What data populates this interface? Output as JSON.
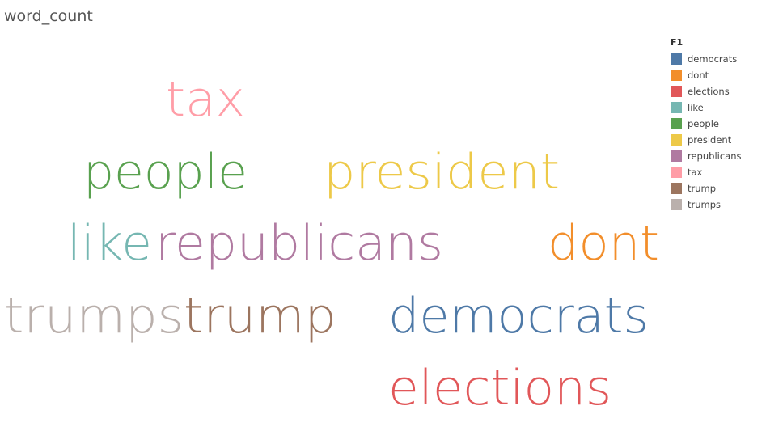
{
  "sheet": {
    "title": "word_count"
  },
  "legend": {
    "title": "F1"
  },
  "chart_data": {
    "type": "word-cloud",
    "field": "F1",
    "words": [
      {
        "text": "democrats",
        "color": "#4e79a7"
      },
      {
        "text": "dont",
        "color": "#f28e2b"
      },
      {
        "text": "elections",
        "color": "#e15759"
      },
      {
        "text": "like",
        "color": "#76b7b2"
      },
      {
        "text": "people",
        "color": "#59a14f"
      },
      {
        "text": "president",
        "color": "#edc948"
      },
      {
        "text": "republicans",
        "color": "#b07aa1"
      },
      {
        "text": "tax",
        "color": "#ff9da7"
      },
      {
        "text": "trump",
        "color": "#9c755f"
      },
      {
        "text": "trumps",
        "color": "#bab0ac"
      }
    ]
  }
}
